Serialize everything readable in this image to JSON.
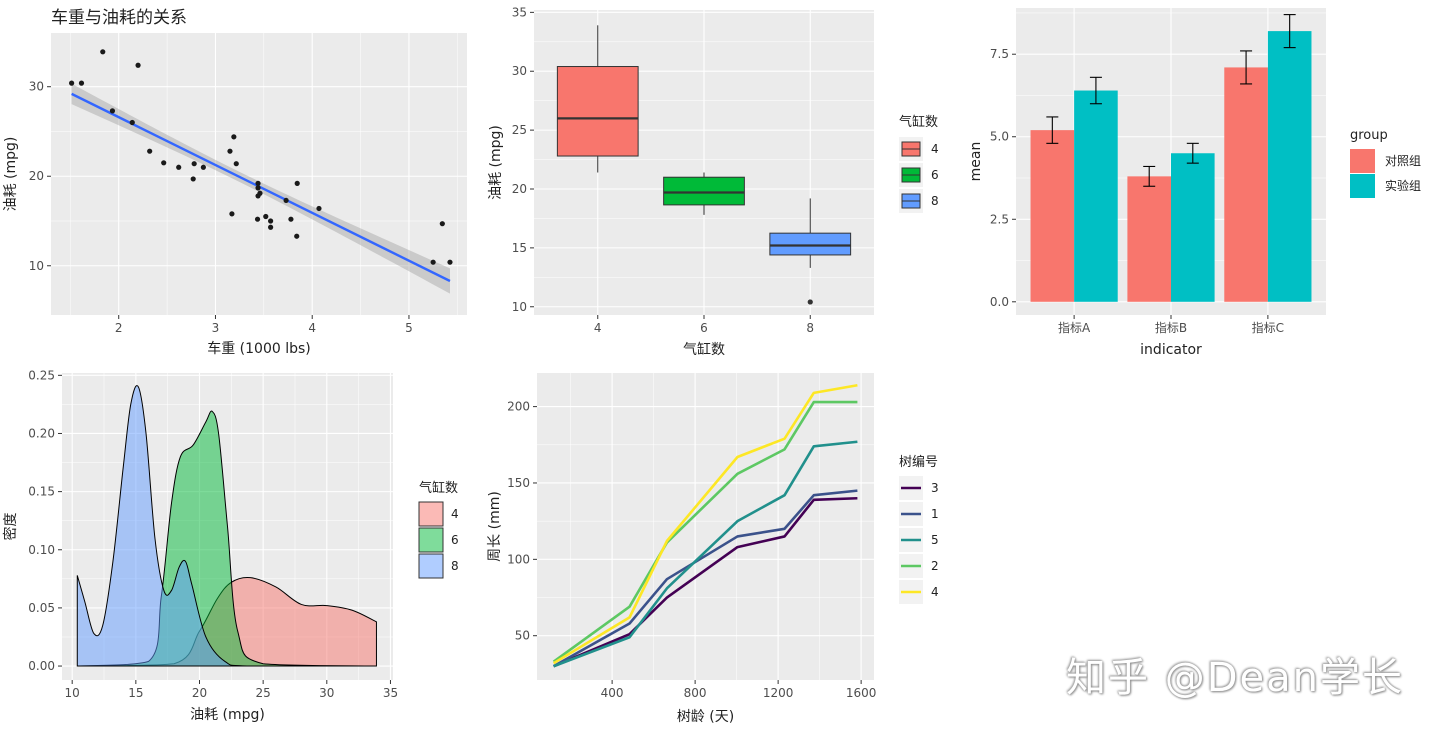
{
  "watermark": "知乎 @Dean学长",
  "chart_data": [
    {
      "id": "scatter",
      "type": "scatter",
      "title": "车重与油耗的关系",
      "xlabel": "车重 (1000 lbs)",
      "ylabel": "油耗 (mpg)",
      "xlim": [
        1.3,
        5.6
      ],
      "ylim": [
        4.5,
        36
      ],
      "xticks": [
        2,
        3,
        4,
        5
      ],
      "yticks": [
        10,
        20,
        30
      ],
      "points": [
        [
          2.62,
          21.0
        ],
        [
          2.875,
          21.0
        ],
        [
          2.32,
          22.8
        ],
        [
          3.215,
          21.4
        ],
        [
          3.44,
          18.7
        ],
        [
          3.46,
          18.1
        ],
        [
          3.57,
          14.3
        ],
        [
          3.19,
          24.4
        ],
        [
          3.15,
          22.8
        ],
        [
          3.44,
          19.2
        ],
        [
          3.44,
          17.8
        ],
        [
          4.07,
          16.4
        ],
        [
          3.73,
          17.3
        ],
        [
          3.78,
          15.2
        ],
        [
          5.25,
          10.4
        ],
        [
          5.424,
          10.4
        ],
        [
          5.345,
          14.7
        ],
        [
          2.2,
          32.4
        ],
        [
          1.615,
          30.4
        ],
        [
          1.835,
          33.9
        ],
        [
          2.465,
          21.5
        ],
        [
          3.52,
          15.5
        ],
        [
          3.435,
          15.2
        ],
        [
          3.84,
          13.3
        ],
        [
          3.845,
          19.2
        ],
        [
          1.935,
          27.3
        ],
        [
          2.14,
          26.0
        ],
        [
          1.513,
          30.4
        ],
        [
          3.17,
          15.8
        ],
        [
          2.77,
          19.7
        ],
        [
          3.57,
          15.0
        ],
        [
          2.78,
          21.4
        ]
      ],
      "fit": {
        "intercept": 37.285,
        "slope": -5.344,
        "color": "#3366FF"
      }
    },
    {
      "id": "boxplot",
      "type": "box",
      "xlabel": "气缸数",
      "ylabel": "油耗 (mpg)",
      "ylim": [
        9.3,
        35.2
      ],
      "yticks": [
        10,
        15,
        20,
        25,
        30,
        35
      ],
      "legend_title": "气缸数",
      "boxes": [
        {
          "label": "4",
          "color": "#F8766D",
          "min": 21.4,
          "q1": 22.8,
          "median": 26.0,
          "q3": 30.4,
          "max": 33.9,
          "outliers": []
        },
        {
          "label": "6",
          "color": "#00BA38",
          "min": 17.8,
          "q1": 18.65,
          "median": 19.7,
          "q3": 21.0,
          "max": 21.4,
          "outliers": []
        },
        {
          "label": "8",
          "color": "#619CFF",
          "min": 13.3,
          "q1": 14.4,
          "median": 15.2,
          "q3": 16.25,
          "max": 19.2,
          "outliers": [
            10.4,
            10.4
          ]
        }
      ]
    },
    {
      "id": "bars",
      "type": "bar",
      "xlabel": "indicator",
      "ylabel": "mean",
      "ylim": [
        -0.4,
        8.9
      ],
      "yticks": [
        0.0,
        2.5,
        5.0,
        7.5
      ],
      "ytick_labels": [
        "0.0",
        "2.5",
        "5.0",
        "7.5"
      ],
      "categories": [
        "指标A",
        "指标B",
        "指标C"
      ],
      "legend_title": "group",
      "series": [
        {
          "name": "对照组",
          "color": "#F8766D",
          "values": [
            5.2,
            3.8,
            7.1
          ],
          "err": [
            0.4,
            0.3,
            0.5
          ]
        },
        {
          "name": "实验组",
          "color": "#00BFC4",
          "values": [
            6.4,
            4.5,
            8.2
          ],
          "err": [
            0.4,
            0.3,
            0.5
          ]
        }
      ]
    },
    {
      "id": "density",
      "type": "area",
      "xlabel": "油耗 (mpg)",
      "ylabel": "密度",
      "xlim": [
        9.2,
        35.2
      ],
      "ylim": [
        -0.012,
        0.252
      ],
      "xticks": [
        10,
        15,
        20,
        25,
        30,
        35
      ],
      "yticks": [
        0.0,
        0.05,
        0.1,
        0.15,
        0.2,
        0.25
      ],
      "ytick_labels": [
        "0.00",
        "0.05",
        "0.10",
        "0.15",
        "0.20",
        "0.25"
      ],
      "legend_title": "气缸数",
      "series": [
        {
          "name": "4",
          "color": "#F8766D",
          "x": [
            10.4,
            18,
            20,
            21.4,
            22.5,
            24,
            26,
            28,
            30,
            32,
            33.9
          ],
          "y": [
            0,
            0.002,
            0.03,
            0.058,
            0.072,
            0.076,
            0.068,
            0.053,
            0.052,
            0.048,
            0.038
          ]
        },
        {
          "name": "6",
          "color": "#00BA38",
          "x": [
            10.4,
            16,
            17,
            17.8,
            18.5,
            19.5,
            20.5,
            21,
            21.5,
            22.2,
            23,
            25,
            33.9
          ],
          "y": [
            0,
            0.004,
            0.06,
            0.14,
            0.18,
            0.19,
            0.21,
            0.219,
            0.2,
            0.12,
            0.03,
            0.002,
            0
          ]
        },
        {
          "name": "8",
          "color": "#619CFF",
          "x": [
            10.4,
            11,
            11.7,
            12.4,
            13.2,
            14,
            14.6,
            15.2,
            15.8,
            16.5,
            17.2,
            17.8,
            18.4,
            18.9,
            19.4,
            20.5,
            22,
            24,
            33.9
          ],
          "y": [
            0.078,
            0.055,
            0.028,
            0.035,
            0.09,
            0.17,
            0.225,
            0.24,
            0.2,
            0.11,
            0.065,
            0.065,
            0.085,
            0.09,
            0.07,
            0.025,
            0.004,
            0,
            0
          ]
        }
      ]
    },
    {
      "id": "lines",
      "type": "line",
      "xlabel": "树龄 (天)",
      "ylabel": "周长 (mm)",
      "xlim": [
        38,
        1662
      ],
      "ylim": [
        21,
        222
      ],
      "xticks": [
        400,
        800,
        1200,
        1600
      ],
      "yticks": [
        50,
        100,
        150,
        200
      ],
      "legend_title": "树编号",
      "x": [
        118,
        484,
        664,
        1004,
        1231,
        1372,
        1582
      ],
      "series": [
        {
          "name": "3",
          "color": "#440154",
          "values": [
            30,
            51,
            75,
            108,
            115,
            139,
            140
          ]
        },
        {
          "name": "1",
          "color": "#3B528B",
          "values": [
            30,
            58,
            87,
            115,
            120,
            142,
            145
          ]
        },
        {
          "name": "5",
          "color": "#21908C",
          "values": [
            30,
            49,
            81,
            125,
            142,
            174,
            177
          ]
        },
        {
          "name": "2",
          "color": "#5DC863",
          "values": [
            33,
            69,
            111,
            156,
            172,
            203,
            203
          ]
        },
        {
          "name": "4",
          "color": "#FDE725",
          "values": [
            32,
            62,
            112,
            167,
            179,
            209,
            214
          ]
        }
      ]
    }
  ]
}
